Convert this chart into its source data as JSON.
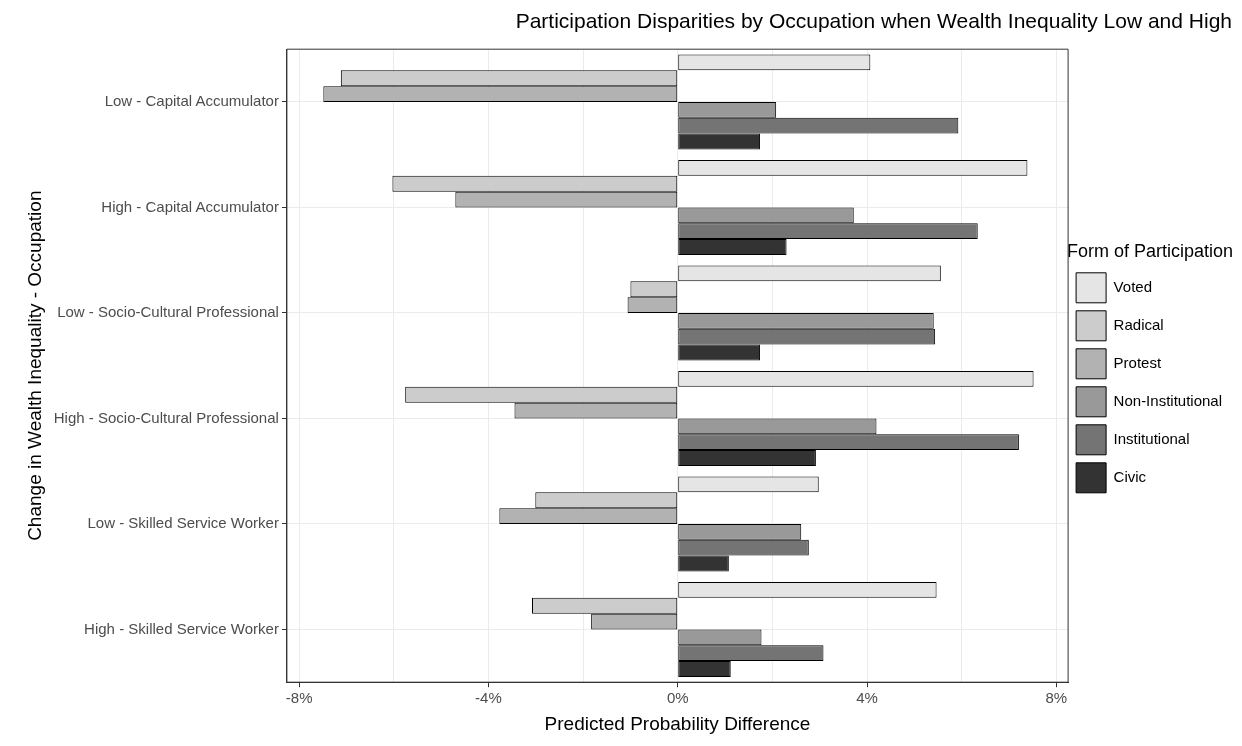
{
  "chart_data": {
    "type": "bar",
    "orientation": "horizontal",
    "title": "Participation Disparities by Occupation when Wealth Inequality Low and High",
    "xlabel": "Predicted Probability Difference",
    "ylabel": "Change in Wealth Inequality - Occupation",
    "legend_title": "Form of Participation",
    "legend": "right",
    "grid": true,
    "categories": [
      "Low - Capital Accumulator",
      "High - Capital Accumulator",
      "Low - Socio-Cultural Professional",
      "High - Socio-Cultural Professional",
      "Low - Skilled Service Worker",
      "High - Skilled Service Worker"
    ],
    "xlim": [
      -8.26,
      8.25
    ],
    "xticks": [
      {
        "value": -8,
        "label": "-8%"
      },
      {
        "value": -6,
        "label": null
      },
      {
        "value": -4,
        "label": "-4%"
      },
      {
        "value": -2,
        "label": null
      },
      {
        "value": 0,
        "label": "0%"
      },
      {
        "value": 2,
        "label": null
      },
      {
        "value": 4,
        "label": "4%"
      },
      {
        "value": 6,
        "label": null
      },
      {
        "value": 8,
        "label": "8%"
      }
    ],
    "series": [
      {
        "name": "Voted",
        "color": "#e5e5e5",
        "values": [
          4.07,
          7.39,
          5.56,
          7.52,
          2.98,
          5.47
        ]
      },
      {
        "name": "Radical",
        "color": "#cccccc",
        "values": [
          -7.12,
          -6.03,
          -1.0,
          -5.76,
          -3.01,
          -3.08
        ]
      },
      {
        "name": "Protest",
        "color": "#b2b2b2",
        "values": [
          -7.49,
          -4.7,
          -1.06,
          -3.45,
          -3.77,
          -1.83
        ]
      },
      {
        "name": "Non-Institutional",
        "color": "#999999",
        "values": [
          2.08,
          3.72,
          5.41,
          4.2,
          2.61,
          1.77
        ]
      },
      {
        "name": "Institutional",
        "color": "#747474",
        "values": [
          5.93,
          6.34,
          5.44,
          7.21,
          2.77,
          3.08
        ]
      },
      {
        "name": "Civic",
        "color": "#333333",
        "values": [
          1.74,
          2.3,
          1.74,
          2.92,
          1.08,
          1.12
        ]
      }
    ]
  }
}
